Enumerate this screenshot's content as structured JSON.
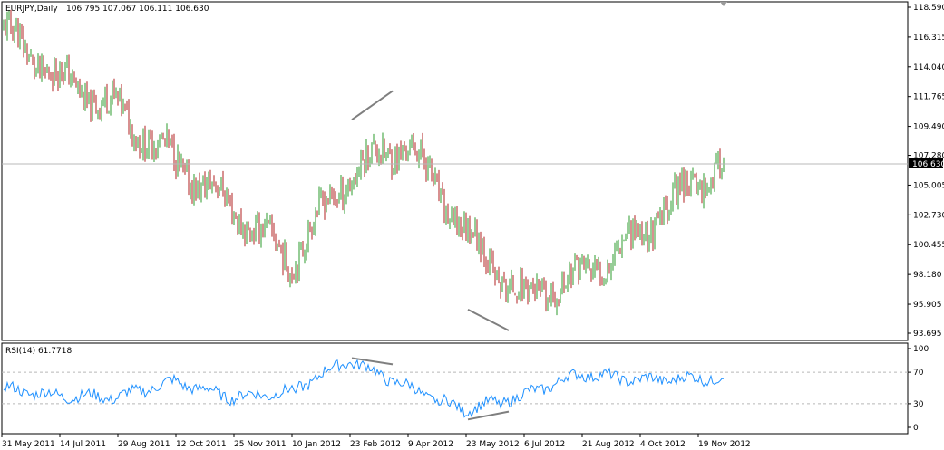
{
  "header": {
    "title": "EURJPY,Daily",
    "ohlc": "106.795 107.067 106.111 106.630"
  },
  "rsi_header": {
    "label": "RSI(14) 61.7718"
  },
  "current_price_label": "106.630",
  "colors": {
    "up_bar": "#2e9b2e",
    "down_bar": "#b02020",
    "rsi_line": "#1e90ff",
    "level_line": "#b8b8b8",
    "divergence_line": "#7f7f7f",
    "price_line": "#b8b8b8",
    "frame": "#000000"
  },
  "chart_data": [
    {
      "type": "bar",
      "title": "EURJPY,Daily",
      "ohlc_readout": "106.795 107.067 106.111 106.630",
      "y_ticks": [
        "118.590",
        "116.315",
        "114.040",
        "111.765",
        "109.490",
        "107.280",
        "106.630",
        "105.005",
        "102.730",
        "100.455",
        "98.180",
        "95.905",
        "93.695"
      ],
      "y_tick_values": [
        118.59,
        116.315,
        114.04,
        111.765,
        109.49,
        107.28,
        105.005,
        102.73,
        100.455,
        98.18,
        95.905,
        93.695
      ],
      "ylim": [
        93.695,
        118.59
      ],
      "x_ticks": [
        "31 May 2011",
        "14 Jul 2011",
        "29 Aug 2011",
        "12 Oct 2011",
        "25 Nov 2011",
        "10 Jan 2012",
        "23 Feb 2012",
        "9 Apr 2012",
        "23 May 2012",
        "6 Jul 2012",
        "21 Aug 2012",
        "4 Oct 2012",
        "19 Nov 2012"
      ],
      "close_path": [
        [
          "31 May 2011",
          117.0
        ],
        [
          "14 Jul 2011",
          113.2
        ],
        [
          "29 Aug 2011",
          110.8
        ],
        [
          "12 Oct 2011",
          106.8
        ],
        [
          "25 Nov 2011",
          103.3
        ],
        [
          "10 Jan 2012",
          99.2
        ],
        [
          "23 Feb 2012",
          105.8
        ],
        [
          "9 Apr 2012",
          108.3
        ],
        [
          "23 May 2012",
          101.5
        ],
        [
          "6 Jul 2012",
          96.3
        ],
        [
          "21 Aug 2012",
          98.0
        ],
        [
          "4 Oct 2012",
          101.3
        ],
        [
          "19 Nov 2012",
          105.4
        ]
      ],
      "last_close": 106.63,
      "divergence_lines": [
        {
          "from": [
            "23 Feb 2012",
            110.0
          ],
          "to": [
            "9 Apr 2012",
            112.2
          ]
        },
        {
          "from": [
            "23 May 2012",
            95.5
          ],
          "to": [
            "6 Jul 2012",
            93.9
          ]
        }
      ]
    },
    {
      "type": "line",
      "title": "RSI(14) 61.7718",
      "y_ticks": [
        "100",
        "70",
        "30",
        "0"
      ],
      "y_tick_values": [
        100,
        70,
        30,
        0
      ],
      "ylim": [
        0,
        100
      ],
      "levels": [
        70,
        30
      ],
      "series": [
        {
          "name": "RSI(14)",
          "last": 61.7718,
          "path": [
            [
              "31 May 2011",
              50
            ],
            [
              "14 Jul 2011",
              40
            ],
            [
              "29 Aug 2011",
              38
            ],
            [
              "12 Oct 2011",
              58
            ],
            [
              "25 Nov 2011",
              38
            ],
            [
              "10 Jan 2012",
              45
            ],
            [
              "23 Feb 2012",
              85
            ],
            [
              "9 Apr 2012",
              52
            ],
            [
              "23 May 2012",
              22
            ],
            [
              "6 Jul 2012",
              40
            ],
            [
              "21 Aug 2012",
              68
            ],
            [
              "4 Oct 2012",
              60
            ],
            [
              "19 Nov 2012",
              62
            ]
          ]
        }
      ],
      "divergence_lines": [
        {
          "from": [
            "23 Feb 2012",
            88
          ],
          "to": [
            "9 Apr 2012",
            80
          ]
        },
        {
          "from": [
            "23 May 2012",
            10
          ],
          "to": [
            "6 Jul 2012",
            20
          ]
        }
      ]
    }
  ]
}
